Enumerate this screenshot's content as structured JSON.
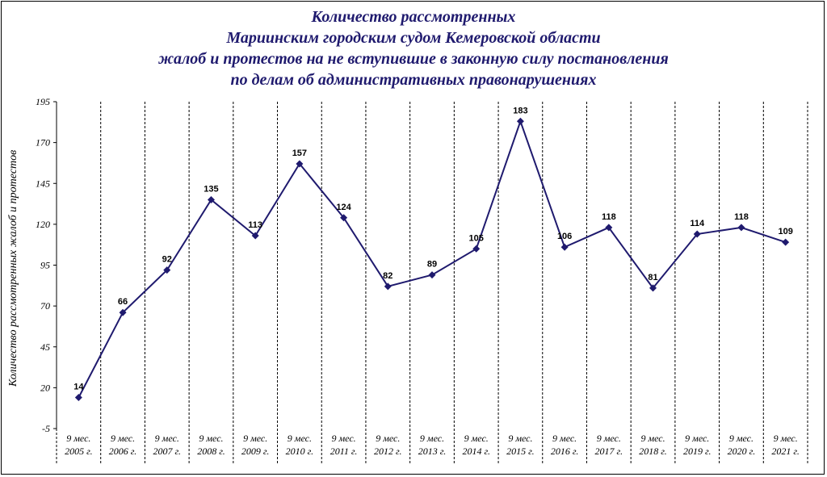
{
  "chart_data": {
    "type": "line",
    "title_lines": [
      "Количество рассмотренных",
      "Мариинским городским судом Кемеровской области",
      "жалоб и протестов на не вступившие в законную силу постановления",
      "по делам об административных правонарушениях"
    ],
    "ylabel": "Количество рассмотренных жалоб и протестов",
    "xlabel": "",
    "ylim": [
      -5,
      195
    ],
    "yticks": [
      -5,
      20,
      45,
      70,
      95,
      120,
      145,
      170,
      195
    ],
    "categories": [
      [
        "9 мес.",
        "2005 г."
      ],
      [
        "9 мес.",
        "2006 г."
      ],
      [
        "9 мес.",
        "2007 г."
      ],
      [
        "9 мес.",
        "2008 г."
      ],
      [
        "9 мес.",
        "2009 г."
      ],
      [
        "9 мес.",
        "2010 г."
      ],
      [
        "9 мес.",
        "2011 г."
      ],
      [
        "9 мес.",
        "2012 г."
      ],
      [
        "9 мес.",
        "2013 г."
      ],
      [
        "9 мес.",
        "2014 г."
      ],
      [
        "9 мес.",
        "2015 г."
      ],
      [
        "9 мес.",
        "2016 г."
      ],
      [
        "9 мес.",
        "2017 г."
      ],
      [
        "9 мес.",
        "2018 г."
      ],
      [
        "9 мес.",
        "2019 г."
      ],
      [
        "9 мес.",
        "2020 г."
      ],
      [
        "9 мес.",
        "2021 г."
      ]
    ],
    "values": [
      14,
      66,
      92,
      135,
      113,
      157,
      124,
      82,
      89,
      105,
      183,
      106,
      118,
      81,
      114,
      118,
      109
    ],
    "line_color": "#1f1a6e",
    "grid": "vertical dashed separators between categories",
    "legend": "none"
  }
}
